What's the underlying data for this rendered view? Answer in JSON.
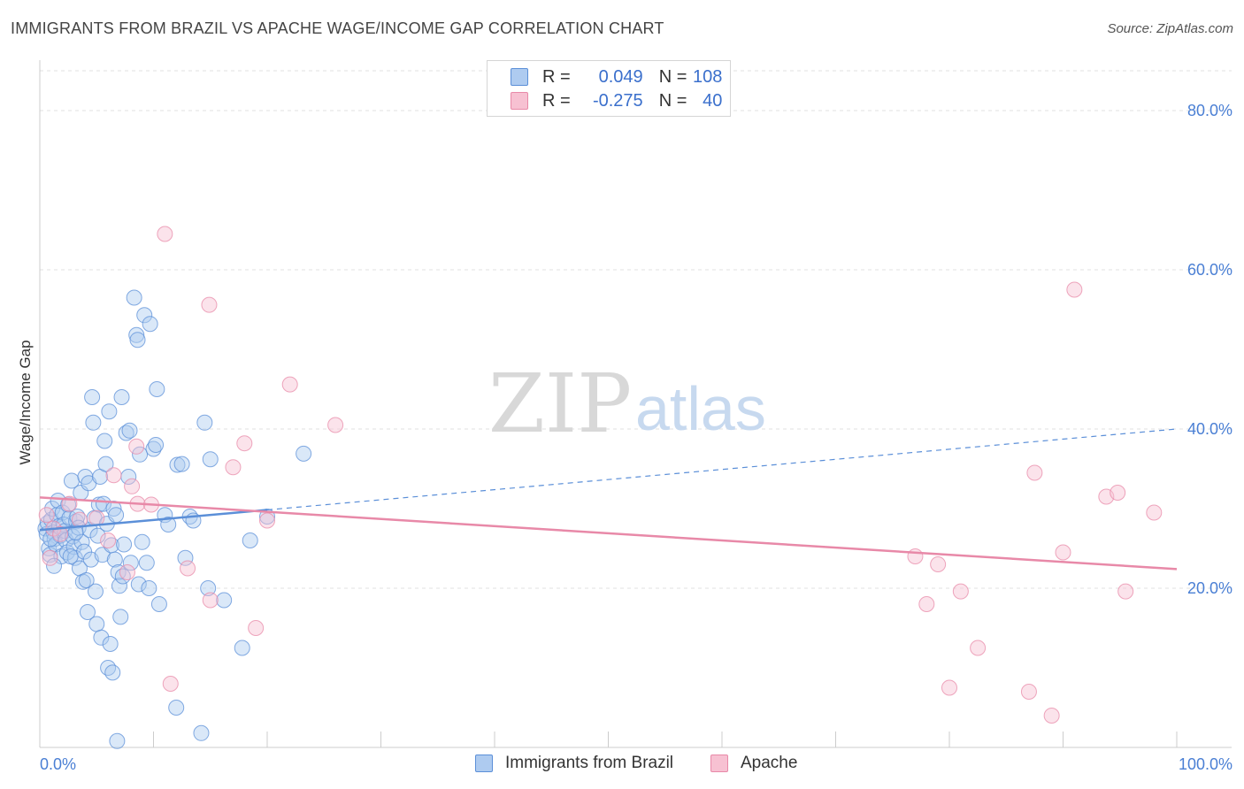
{
  "title": "IMMIGRANTS FROM BRAZIL VS APACHE WAGE/INCOME GAP CORRELATION CHART",
  "source": "Source: ZipAtlas.com",
  "watermark": {
    "zip": "ZIP",
    "atlas": "atlas"
  },
  "legend": {
    "r_label": "R =",
    "n_label": "N =",
    "series": [
      {
        "name": "Immigrants from Brazil",
        "r": "0.049",
        "n": "108",
        "fill": "#aecbf0",
        "stroke": "#5b8fd8"
      },
      {
        "name": "Apache",
        "r": "-0.275",
        "n": "40",
        "fill": "#f7c1d2",
        "stroke": "#e889a8"
      }
    ]
  },
  "chart_data": {
    "type": "scatter",
    "xlabel": "",
    "ylabel": "Wage/Income Gap",
    "xlim": [
      0,
      100
    ],
    "ylim": [
      0,
      85
    ],
    "x_tick_labels": [
      "0.0%",
      "100.0%"
    ],
    "y_ticks": [
      20,
      40,
      60,
      80
    ],
    "y_tick_labels": [
      "20.0%",
      "40.0%",
      "60.0%",
      "80.0%"
    ],
    "grid": true,
    "series": [
      {
        "name": "Immigrants from Brazil",
        "color": "#5b8fd8",
        "trend": {
          "x0": 0,
          "y0": 27.3,
          "x1": 100,
          "y1": 40.0,
          "solid_until": 20
        },
        "points": [
          [
            0.5,
            27.5
          ],
          [
            0.6,
            26.8
          ],
          [
            0.7,
            28.2
          ],
          [
            0.8,
            25.0
          ],
          [
            0.9,
            24.2
          ],
          [
            1.0,
            28.6
          ],
          [
            1.1,
            30.0
          ],
          [
            1.2,
            27.0
          ],
          [
            1.3,
            26.2
          ],
          [
            1.4,
            25.5
          ],
          [
            1.5,
            29.2
          ],
          [
            1.6,
            31.0
          ],
          [
            1.7,
            27.8
          ],
          [
            1.8,
            26.6
          ],
          [
            1.9,
            24.0
          ],
          [
            2.0,
            29.5
          ],
          [
            2.1,
            28.0
          ],
          [
            2.2,
            27.2
          ],
          [
            2.3,
            26.0
          ],
          [
            2.4,
            24.5
          ],
          [
            2.5,
            30.5
          ],
          [
            2.6,
            28.8
          ],
          [
            2.8,
            33.5
          ],
          [
            2.9,
            26.5
          ],
          [
            3.0,
            25.2
          ],
          [
            3.1,
            23.8
          ],
          [
            3.2,
            28.4
          ],
          [
            3.3,
            29.0
          ],
          [
            3.4,
            27.6
          ],
          [
            3.5,
            22.5
          ],
          [
            3.6,
            32.0
          ],
          [
            3.7,
            25.8
          ],
          [
            3.8,
            20.8
          ],
          [
            3.9,
            24.6
          ],
          [
            4.0,
            34.0
          ],
          [
            4.1,
            21.0
          ],
          [
            4.2,
            17.0
          ],
          [
            4.3,
            33.2
          ],
          [
            4.4,
            27.3
          ],
          [
            4.5,
            23.6
          ],
          [
            4.6,
            44.0
          ],
          [
            4.7,
            40.8
          ],
          [
            4.8,
            28.8
          ],
          [
            4.9,
            19.6
          ],
          [
            5.0,
            15.5
          ],
          [
            5.1,
            26.6
          ],
          [
            5.2,
            30.5
          ],
          [
            5.3,
            34.0
          ],
          [
            5.4,
            13.8
          ],
          [
            5.5,
            24.2
          ],
          [
            5.6,
            30.6
          ],
          [
            5.7,
            38.5
          ],
          [
            5.8,
            35.6
          ],
          [
            5.9,
            28.1
          ],
          [
            6.0,
            10.0
          ],
          [
            6.1,
            42.2
          ],
          [
            6.2,
            13.0
          ],
          [
            6.3,
            25.4
          ],
          [
            6.4,
            9.4
          ],
          [
            6.5,
            30.0
          ],
          [
            6.6,
            23.6
          ],
          [
            6.7,
            29.2
          ],
          [
            6.8,
            0.8
          ],
          [
            6.9,
            22.0
          ],
          [
            7.0,
            20.3
          ],
          [
            7.1,
            16.4
          ],
          [
            7.2,
            44.0
          ],
          [
            7.3,
            21.5
          ],
          [
            7.4,
            25.5
          ],
          [
            7.6,
            39.5
          ],
          [
            7.8,
            34.0
          ],
          [
            7.9,
            39.8
          ],
          [
            8.0,
            23.2
          ],
          [
            8.3,
            56.5
          ],
          [
            8.5,
            51.8
          ],
          [
            8.6,
            51.2
          ],
          [
            8.7,
            20.5
          ],
          [
            8.8,
            36.8
          ],
          [
            9.0,
            25.8
          ],
          [
            9.2,
            54.3
          ],
          [
            9.4,
            23.2
          ],
          [
            9.6,
            20.0
          ],
          [
            9.7,
            53.2
          ],
          [
            10.0,
            37.5
          ],
          [
            10.2,
            38.0
          ],
          [
            10.3,
            45.0
          ],
          [
            10.5,
            18.0
          ],
          [
            11.0,
            29.2
          ],
          [
            11.3,
            28.0
          ],
          [
            12.0,
            5.0
          ],
          [
            12.1,
            35.5
          ],
          [
            12.5,
            35.6
          ],
          [
            12.8,
            23.8
          ],
          [
            13.2,
            29.0
          ],
          [
            13.5,
            28.5
          ],
          [
            14.2,
            1.8
          ],
          [
            14.5,
            40.8
          ],
          [
            14.8,
            20.0
          ],
          [
            15.0,
            36.2
          ],
          [
            16.2,
            18.5
          ],
          [
            17.8,
            12.5
          ],
          [
            18.5,
            26.0
          ],
          [
            20.0,
            29.0
          ],
          [
            23.2,
            36.9
          ],
          [
            2.7,
            24.0
          ],
          [
            3.15,
            27.0
          ],
          [
            1.25,
            22.8
          ],
          [
            0.95,
            26.2
          ]
        ]
      },
      {
        "name": "Apache",
        "color": "#e889a8",
        "trend": {
          "x0": 0,
          "y0": 31.4,
          "x1": 100,
          "y1": 22.4,
          "solid_until": 100
        },
        "points": [
          [
            0.6,
            29.2
          ],
          [
            0.9,
            23.8
          ],
          [
            1.2,
            27.5
          ],
          [
            1.8,
            26.8
          ],
          [
            2.6,
            30.6
          ],
          [
            3.5,
            28.6
          ],
          [
            5.0,
            28.8
          ],
          [
            6.0,
            26.0
          ],
          [
            6.5,
            34.2
          ],
          [
            7.7,
            22.0
          ],
          [
            8.1,
            32.8
          ],
          [
            8.5,
            37.8
          ],
          [
            8.6,
            30.6
          ],
          [
            9.8,
            30.5
          ],
          [
            11.0,
            64.5
          ],
          [
            11.5,
            8.0
          ],
          [
            13.0,
            22.5
          ],
          [
            14.9,
            55.6
          ],
          [
            15.0,
            18.5
          ],
          [
            17.0,
            35.2
          ],
          [
            18.0,
            38.2
          ],
          [
            19.0,
            15.0
          ],
          [
            20.0,
            28.5
          ],
          [
            22.0,
            45.6
          ],
          [
            26.0,
            40.5
          ],
          [
            77.0,
            24.0
          ],
          [
            78.0,
            18.0
          ],
          [
            79.0,
            23.0
          ],
          [
            80.0,
            7.5
          ],
          [
            81.0,
            19.6
          ],
          [
            82.5,
            12.5
          ],
          [
            87.0,
            7.0
          ],
          [
            87.5,
            34.5
          ],
          [
            89.0,
            4.0
          ],
          [
            90.0,
            24.5
          ],
          [
            91.0,
            57.5
          ],
          [
            93.8,
            31.5
          ],
          [
            94.8,
            32.0
          ],
          [
            95.5,
            19.6
          ],
          [
            98.0,
            29.5
          ]
        ]
      }
    ]
  }
}
